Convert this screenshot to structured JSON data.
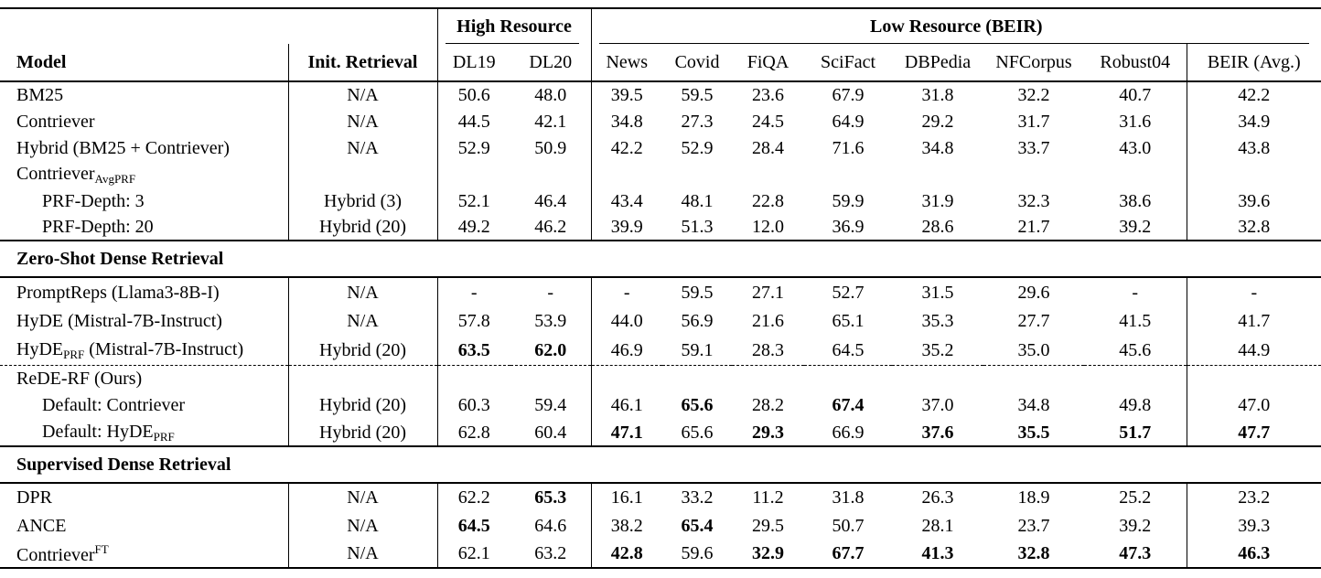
{
  "page": {
    "background": "#ffffff",
    "text_color": "#000000",
    "line_color": "#000000"
  },
  "table": {
    "group_header": [
      {
        "label": "",
        "span": 2
      },
      {
        "label": "High Resource",
        "span": 2
      },
      {
        "label": "Low Resource (BEIR)",
        "span": 8
      }
    ],
    "columns": [
      "Model",
      "Init. Retrieval",
      "DL19",
      "DL20",
      "News",
      "Covid",
      "FiQA",
      "SciFact",
      "DBPedia",
      "NFCorpus",
      "Robust04",
      "BEIR (Avg.)"
    ],
    "rows": [
      {
        "type": "data",
        "model": [
          {
            "t": "BM25"
          }
        ],
        "init": "N/A",
        "values": [
          "50.6",
          "48.0",
          "39.5",
          "59.5",
          "23.6",
          "67.9",
          "31.8",
          "32.2",
          "40.7",
          "42.2"
        ]
      },
      {
        "type": "data",
        "model": [
          {
            "t": "Contriever"
          }
        ],
        "init": "N/A",
        "values": [
          "44.5",
          "42.1",
          "34.8",
          "27.3",
          "24.5",
          "64.9",
          "29.2",
          "31.7",
          "31.6",
          "34.9"
        ]
      },
      {
        "type": "data",
        "model": [
          {
            "t": "Hybrid (BM25 + Contriever)"
          }
        ],
        "init": "N/A",
        "values": [
          "52.9",
          "50.9",
          "42.2",
          "52.9",
          "28.4",
          "71.6",
          "34.8",
          "33.7",
          "43.0",
          "43.8"
        ]
      },
      {
        "type": "label",
        "model": [
          {
            "t": "Contriever"
          },
          {
            "t": "AvgPRF",
            "s": "sub"
          }
        ],
        "init": "",
        "values": []
      },
      {
        "type": "data",
        "indent": true,
        "model": [
          {
            "t": "PRF-Depth: 3"
          }
        ],
        "init": "Hybrid (3)",
        "values": [
          "52.1",
          "46.4",
          "43.4",
          "48.1",
          "22.8",
          "59.9",
          "31.9",
          "32.3",
          "38.6",
          "39.6"
        ]
      },
      {
        "type": "data",
        "indent": true,
        "model": [
          {
            "t": "PRF-Depth: 20"
          }
        ],
        "init": "Hybrid (20)",
        "values": [
          "49.2",
          "46.2",
          "39.9",
          "51.3",
          "12.0",
          "36.9",
          "28.6",
          "21.7",
          "39.2",
          "32.8"
        ]
      },
      {
        "type": "section",
        "label": "Zero-Shot Dense Retrieval"
      },
      {
        "type": "data",
        "model": [
          {
            "t": "PromptReps (Llama3-8B-I)"
          }
        ],
        "init": "N/A",
        "values": [
          "-",
          "-",
          "-",
          "59.5",
          "27.1",
          "52.7",
          "31.5",
          "29.6",
          "-",
          "-"
        ]
      },
      {
        "type": "data",
        "model": [
          {
            "t": "HyDE (Mistral-7B-Instruct)"
          }
        ],
        "init": "N/A",
        "values": [
          "57.8",
          "53.9",
          "44.0",
          "56.9",
          "21.6",
          "65.1",
          "35.3",
          "27.7",
          "41.5",
          "41.7"
        ]
      },
      {
        "type": "data",
        "model": [
          {
            "t": "HyDE"
          },
          {
            "t": "PRF",
            "s": "sub"
          },
          {
            "t": " (Mistral-7B-Instruct)"
          }
        ],
        "init": "Hybrid (20)",
        "values": [
          {
            "v": "63.5",
            "bold": true
          },
          {
            "v": "62.0",
            "bold": true
          },
          "46.9",
          "59.1",
          "28.3",
          "64.5",
          "35.2",
          "35.0",
          "45.6",
          "44.9"
        ]
      },
      {
        "type": "label",
        "dashed_top": true,
        "model": [
          {
            "t": "ReDE-RF (Ours)"
          }
        ],
        "init": "",
        "values": []
      },
      {
        "type": "data",
        "indent": true,
        "model": [
          {
            "t": "Default: Contriever"
          }
        ],
        "init": "Hybrid (20)",
        "values": [
          "60.3",
          "59.4",
          "46.1",
          {
            "v": "65.6",
            "bold": true
          },
          "28.2",
          {
            "v": "67.4",
            "bold": true
          },
          "37.0",
          "34.8",
          "49.8",
          "47.0"
        ]
      },
      {
        "type": "data",
        "indent": true,
        "model": [
          {
            "t": "Default: HyDE"
          },
          {
            "t": "PRF",
            "s": "sub"
          }
        ],
        "init": "Hybrid (20)",
        "values": [
          "62.8",
          "60.4",
          {
            "v": "47.1",
            "bold": true
          },
          "65.6",
          {
            "v": "29.3",
            "bold": true
          },
          "66.9",
          {
            "v": "37.6",
            "bold": true
          },
          {
            "v": "35.5",
            "bold": true
          },
          {
            "v": "51.7",
            "bold": true
          },
          {
            "v": "47.7",
            "bold": true
          }
        ]
      },
      {
        "type": "section",
        "label": "Supervised Dense Retrieval"
      },
      {
        "type": "data",
        "model": [
          {
            "t": "DPR"
          }
        ],
        "init": "N/A",
        "values": [
          "62.2",
          {
            "v": "65.3",
            "bold": true
          },
          "16.1",
          "33.2",
          "11.2",
          "31.8",
          "26.3",
          "18.9",
          "25.2",
          "23.2"
        ]
      },
      {
        "type": "data",
        "model": [
          {
            "t": "ANCE"
          }
        ],
        "init": "N/A",
        "values": [
          {
            "v": "64.5",
            "bold": true
          },
          "64.6",
          "38.2",
          {
            "v": "65.4",
            "bold": true
          },
          "29.5",
          "50.7",
          "28.1",
          "23.7",
          "39.2",
          "39.3"
        ]
      },
      {
        "type": "data",
        "model": [
          {
            "t": "Contriever"
          },
          {
            "t": "FT",
            "s": "sup"
          }
        ],
        "init": "N/A",
        "values": [
          "62.1",
          "63.2",
          {
            "v": "42.8",
            "bold": true
          },
          "59.6",
          {
            "v": "32.9",
            "bold": true
          },
          {
            "v": "67.7",
            "bold": true
          },
          {
            "v": "41.3",
            "bold": true
          },
          {
            "v": "32.8",
            "bold": true
          },
          {
            "v": "47.3",
            "bold": true
          },
          {
            "v": "46.3",
            "bold": true
          }
        ]
      }
    ]
  }
}
